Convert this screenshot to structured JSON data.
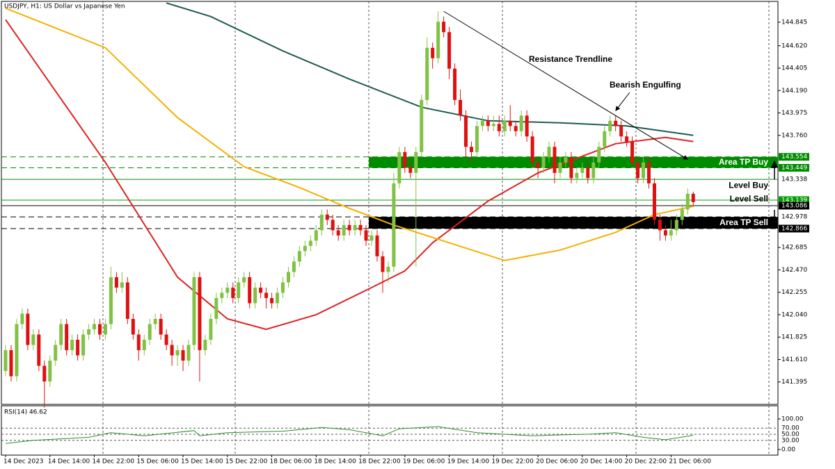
{
  "chart_data": [
    {
      "type": "candlestick",
      "title": "USDJPY, H1:  US Dollar vs Japanese Yen",
      "categories": [
        "14 Dec 2023",
        null,
        null,
        null,
        null,
        null,
        null,
        null,
        "14 Dec 14:00",
        null,
        null,
        null,
        null,
        null,
        null,
        null,
        "14 Dec 22:00",
        null,
        null,
        null,
        null,
        null,
        null,
        null,
        "15 Dec 06:00",
        null,
        null,
        null,
        null,
        null,
        null,
        null,
        "15 Dec 14:00",
        null,
        null,
        null,
        null,
        null,
        null,
        null,
        "15 Dec 22:00",
        null,
        null,
        null,
        null,
        null,
        null,
        null,
        "18 Dec 06:00",
        null,
        null,
        null,
        null,
        null,
        null,
        null,
        "18 Dec 14:00",
        null,
        null,
        null,
        null,
        null,
        null,
        null,
        "18 Dec 22:00",
        null,
        null,
        null,
        null,
        null,
        null,
        null,
        "19 Dec 06:00",
        null,
        null,
        null,
        null,
        null,
        null,
        null,
        "19 Dec 14:00",
        null,
        null,
        null,
        null,
        null,
        null,
        null,
        "19 Dec 22:00",
        null,
        null,
        null,
        null,
        null,
        null,
        null,
        "20 Dec 06:00",
        null,
        null,
        null,
        null,
        null,
        null,
        null,
        "20 Dec 14:00",
        null,
        null,
        null,
        null,
        null,
        null,
        null,
        "20 Dec 22:00",
        null,
        null,
        null,
        null,
        null,
        null,
        null,
        "21 Dec 06:00",
        null,
        null,
        null,
        null
      ],
      "candles": [
        [
          141.5,
          141.75,
          141.45,
          141.7
        ],
        [
          141.7,
          141.75,
          141.4,
          141.45
        ],
        [
          141.45,
          142.0,
          141.4,
          141.95
        ],
        [
          141.95,
          142.1,
          141.9,
          142.05
        ],
        [
          142.05,
          142.1,
          141.7,
          141.75
        ],
        [
          141.75,
          141.9,
          141.7,
          141.85
        ],
        [
          141.85,
          141.9,
          141.5,
          141.55
        ],
        [
          141.55,
          141.6,
          141.15,
          141.4
        ],
        [
          141.4,
          141.65,
          141.35,
          141.6
        ],
        [
          141.6,
          141.8,
          141.55,
          141.75
        ],
        [
          141.75,
          142.0,
          141.7,
          141.95
        ],
        [
          141.95,
          142.0,
          141.65,
          141.7
        ],
        [
          141.7,
          141.85,
          141.65,
          141.8
        ],
        [
          141.8,
          141.85,
          141.6,
          141.65
        ],
        [
          141.65,
          141.9,
          141.6,
          141.85
        ],
        [
          141.85,
          141.95,
          141.8,
          141.9
        ],
        [
          141.9,
          142.0,
          141.85,
          141.95
        ],
        [
          141.95,
          142.0,
          141.8,
          141.85
        ],
        [
          141.85,
          142.0,
          141.8,
          141.95
        ],
        [
          141.95,
          142.5,
          141.9,
          142.4
        ],
        [
          142.4,
          142.45,
          142.25,
          142.3
        ],
        [
          142.3,
          142.45,
          142.25,
          142.35
        ],
        [
          142.35,
          142.4,
          141.95,
          142.0
        ],
        [
          142.0,
          142.05,
          141.8,
          141.85
        ],
        [
          141.85,
          141.9,
          141.6,
          141.7
        ],
        [
          141.7,
          141.85,
          141.65,
          141.8
        ],
        [
          141.8,
          142.0,
          141.75,
          141.95
        ],
        [
          141.95,
          142.05,
          141.9,
          142.0
        ],
        [
          142.0,
          142.05,
          141.8,
          141.85
        ],
        [
          141.85,
          141.9,
          141.7,
          141.75
        ],
        [
          141.75,
          141.8,
          141.55,
          141.65
        ],
        [
          141.65,
          141.75,
          141.55,
          141.7
        ],
        [
          141.7,
          141.75,
          141.5,
          141.6
        ],
        [
          141.6,
          141.8,
          141.55,
          141.75
        ],
        [
          141.75,
          142.45,
          141.7,
          142.4
        ],
        [
          142.4,
          142.45,
          141.4,
          141.7
        ],
        [
          141.7,
          141.85,
          141.65,
          141.8
        ],
        [
          141.8,
          142.05,
          141.75,
          142.0
        ],
        [
          142.0,
          142.25,
          141.95,
          142.2
        ],
        [
          142.2,
          142.3,
          142.15,
          142.25
        ],
        [
          142.25,
          142.35,
          142.2,
          142.3
        ],
        [
          142.3,
          142.35,
          142.15,
          142.2
        ],
        [
          142.2,
          142.4,
          142.15,
          142.35
        ],
        [
          142.35,
          142.45,
          142.3,
          142.4
        ],
        [
          142.4,
          142.45,
          142.1,
          142.15
        ],
        [
          142.15,
          142.35,
          142.1,
          142.3
        ],
        [
          142.3,
          142.35,
          142.2,
          142.25
        ],
        [
          142.25,
          142.3,
          142.1,
          142.2
        ],
        [
          142.2,
          142.25,
          142.1,
          142.15
        ],
        [
          142.15,
          142.3,
          142.1,
          142.25
        ],
        [
          142.25,
          142.4,
          142.2,
          142.35
        ],
        [
          142.35,
          142.5,
          142.3,
          142.45
        ],
        [
          142.45,
          142.6,
          142.4,
          142.55
        ],
        [
          142.55,
          142.7,
          142.5,
          142.65
        ],
        [
          142.65,
          142.75,
          142.6,
          142.7
        ],
        [
          142.7,
          142.8,
          142.65,
          142.75
        ],
        [
          142.75,
          142.9,
          142.7,
          142.85
        ],
        [
          142.85,
          143.05,
          142.8,
          143.0
        ],
        [
          143.0,
          143.05,
          142.9,
          142.95
        ],
        [
          142.95,
          143.0,
          142.8,
          142.85
        ],
        [
          142.85,
          142.9,
          142.75,
          142.8
        ],
        [
          142.8,
          142.95,
          142.75,
          142.9
        ],
        [
          142.9,
          142.95,
          142.8,
          142.85
        ],
        [
          142.85,
          142.95,
          142.8,
          142.9
        ],
        [
          142.9,
          142.95,
          142.8,
          142.85
        ],
        [
          142.85,
          142.9,
          142.7,
          142.75
        ],
        [
          142.75,
          142.85,
          142.7,
          142.8
        ],
        [
          142.8,
          142.85,
          142.55,
          142.6
        ],
        [
          142.6,
          142.65,
          142.25,
          142.45
        ],
        [
          142.45,
          142.55,
          142.35,
          142.5
        ],
        [
          142.5,
          143.4,
          142.45,
          143.3
        ],
        [
          143.3,
          143.65,
          143.25,
          143.6
        ],
        [
          143.6,
          143.65,
          143.4,
          143.45
        ],
        [
          143.45,
          143.5,
          143.35,
          143.4
        ],
        [
          143.4,
          143.65,
          142.5,
          143.6
        ],
        [
          143.6,
          144.15,
          143.55,
          144.1
        ],
        [
          144.1,
          144.7,
          144.05,
          144.6
        ],
        [
          144.6,
          144.65,
          144.4,
          144.5
        ],
        [
          144.5,
          144.95,
          144.45,
          144.85
        ],
        [
          144.85,
          144.9,
          144.7,
          144.75
        ],
        [
          144.75,
          144.8,
          144.3,
          144.4
        ],
        [
          144.4,
          144.45,
          144.05,
          144.1
        ],
        [
          144.1,
          144.2,
          143.9,
          143.95
        ],
        [
          143.95,
          144.0,
          143.55,
          143.65
        ],
        [
          143.65,
          143.7,
          143.5,
          143.6
        ],
        [
          143.6,
          143.9,
          143.55,
          143.85
        ],
        [
          143.85,
          143.95,
          143.8,
          143.9
        ],
        [
          143.9,
          143.95,
          143.8,
          143.85
        ],
        [
          143.85,
          143.95,
          143.8,
          143.87
        ],
        [
          143.87,
          143.95,
          143.75,
          143.8
        ],
        [
          143.8,
          143.95,
          143.75,
          143.9
        ],
        [
          143.9,
          144.05,
          143.8,
          143.85
        ],
        [
          143.85,
          143.9,
          143.75,
          143.8
        ],
        [
          143.8,
          144.0,
          143.75,
          143.95
        ],
        [
          143.95,
          144.0,
          143.7,
          143.75
        ],
        [
          143.75,
          143.8,
          143.45,
          143.5
        ],
        [
          143.5,
          143.55,
          143.35,
          143.45
        ],
        [
          143.45,
          143.6,
          143.4,
          143.55
        ],
        [
          143.55,
          143.7,
          143.5,
          143.65
        ],
        [
          143.65,
          143.7,
          143.3,
          143.4
        ],
        [
          143.4,
          143.55,
          143.35,
          143.5
        ],
        [
          143.5,
          143.6,
          143.45,
          143.55
        ],
        [
          143.55,
          143.6,
          143.3,
          143.35
        ],
        [
          143.35,
          143.45,
          143.3,
          143.4
        ],
        [
          143.4,
          143.5,
          143.35,
          143.45
        ],
        [
          143.45,
          143.5,
          143.3,
          143.35
        ],
        [
          143.35,
          143.55,
          143.3,
          143.5
        ],
        [
          143.5,
          143.7,
          143.45,
          143.65
        ],
        [
          143.65,
          143.85,
          143.6,
          143.8
        ],
        [
          143.8,
          143.95,
          143.75,
          143.9
        ],
        [
          143.9,
          143.95,
          143.8,
          143.85
        ],
        [
          143.85,
          143.9,
          143.7,
          143.75
        ],
        [
          143.75,
          143.8,
          143.65,
          143.7
        ],
        [
          143.7,
          143.75,
          143.45,
          143.5
        ],
        [
          143.5,
          143.55,
          143.3,
          143.35
        ],
        [
          143.35,
          143.55,
          143.3,
          143.5
        ],
        [
          143.5,
          143.55,
          143.25,
          143.3
        ],
        [
          143.3,
          143.35,
          142.9,
          142.95
        ],
        [
          142.95,
          143.0,
          142.75,
          142.85
        ],
        [
          142.85,
          142.9,
          142.75,
          142.8
        ],
        [
          142.8,
          142.95,
          142.75,
          142.85
        ],
        [
          142.85,
          143.0,
          142.8,
          142.95
        ],
        [
          142.95,
          143.1,
          142.9,
          143.05
        ],
        [
          143.05,
          143.25,
          143.0,
          143.2
        ],
        [
          143.2,
          143.22,
          143.08,
          143.12
        ]
      ],
      "up_color": "#80c243",
      "down_color": "#e01010",
      "series": [
        {
          "color": "#dd2222",
          "x": [
            0,
            18,
            31,
            40,
            47,
            56,
            66,
            72,
            77,
            87,
            96,
            104,
            110,
            119,
            124
          ],
          "values": [
            144.87,
            143.5,
            142.4,
            142.0,
            141.9,
            142.04,
            142.3,
            142.46,
            142.73,
            143.13,
            143.4,
            143.56,
            143.68,
            143.74,
            143.7
          ]
        },
        {
          "color": "#f5b000",
          "x": [
            0,
            18,
            31,
            43,
            53,
            62,
            70,
            80,
            90,
            100,
            110,
            117,
            124
          ],
          "values": [
            144.98,
            144.6,
            143.93,
            143.46,
            143.26,
            143.06,
            142.9,
            142.73,
            142.56,
            142.66,
            142.83,
            143.0,
            143.08
          ]
        },
        {
          "color": "#1e5b50",
          "x": [
            29,
            37,
            50,
            62,
            75,
            87,
            100,
            112,
            124
          ],
          "values": [
            145.03,
            144.9,
            144.57,
            144.3,
            144.03,
            143.9,
            143.88,
            143.85,
            143.76
          ]
        }
      ],
      "ylim": [
        141.18,
        145.045
      ],
      "yticks": [
        144.845,
        {
          "value": 144.62,
          "label": "144.620"
        },
        144.405,
        {
          "value": 144.19,
          "label": "144.190"
        },
        143.975,
        {
          "value": 143.76,
          "label": "143.760"
        },
        142.685,
        {
          "value": 142.47,
          "label": "142.470"
        },
        142.255,
        {
          "value": 142.04,
          "label": "142.040"
        },
        141.825,
        {
          "value": 141.61,
          "label": "141.610"
        },
        141.395
      ],
      "levels": [
        {
          "value": 143.554,
          "color": "#008c00",
          "dashed": true,
          "boxed": true
        },
        {
          "value": 143.449,
          "color": "#008c00",
          "dashed": true,
          "boxed": true
        },
        {
          "value": 143.338,
          "color": "#008c00",
          "dashed": false,
          "boxed": false,
          "label": "Level Buy",
          "label_side": "below"
        },
        {
          "value": 143.139,
          "color": "#00a000",
          "dashed": false,
          "boxed": true
        },
        {
          "value": 143.086,
          "color": "#000000",
          "dashed": false,
          "boxed": true,
          "label": "Level Sell",
          "label_side": "above"
        },
        {
          "value": 142.978,
          "color": "#000000",
          "dashed": true,
          "boxed": false
        },
        {
          "value": 142.866,
          "color": "#000000",
          "dashed": true,
          "boxed": true
        }
      ],
      "zones": [
        {
          "label": "Area TP Buy",
          "from": 143.449,
          "to": 143.554,
          "start": 66,
          "color": "#008c00"
        },
        {
          "label": "Area TP Sell",
          "from": 142.866,
          "to": 142.978,
          "start": 66,
          "color": "#000000"
        }
      ],
      "trendline": {
        "label": "Resistance Trendline",
        "from": [
          79,
          144.95
        ],
        "to": [
          123,
          143.53
        ]
      },
      "annotation": {
        "text": "Bearish Engulfing",
        "x": 110,
        "y": 143.97
      }
    },
    {
      "type": "line",
      "title": "RSI(14) 46.62",
      "color": "#2e8b2e",
      "x": [
        0,
        5,
        10,
        15,
        19,
        25,
        34,
        35,
        40,
        50,
        57,
        62,
        68,
        71,
        78,
        85,
        95,
        100,
        105,
        110,
        115,
        119,
        124
      ],
      "values": [
        20,
        30,
        35,
        40,
        55,
        45,
        62,
        45,
        55,
        60,
        72,
        65,
        45,
        68,
        75,
        55,
        45,
        48,
        50,
        55,
        40,
        32,
        46.62
      ],
      "ylim": [
        0,
        100
      ],
      "yticks": [
        {
          "value": 100,
          "label": "100.00"
        },
        {
          "value": 70,
          "label": "70.00"
        },
        {
          "value": 50,
          "label": "50.00"
        },
        {
          "value": 30,
          "label": "30.00"
        },
        {
          "value": 0,
          "label": "0.00"
        }
      ],
      "grid": true
    }
  ]
}
